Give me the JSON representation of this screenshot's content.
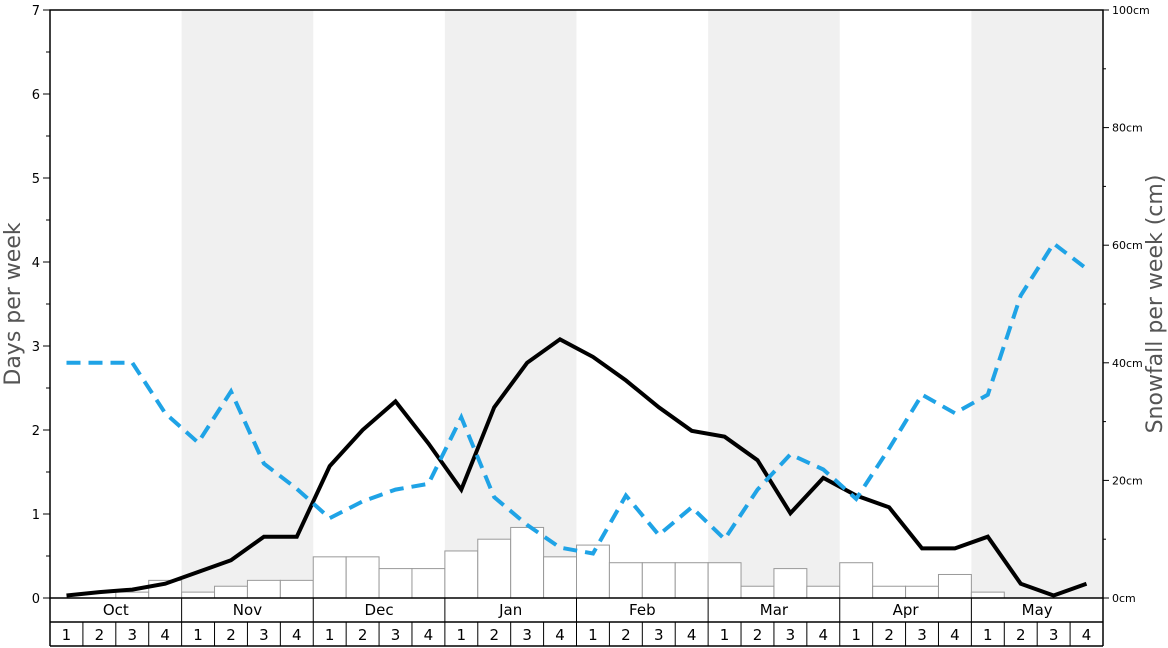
{
  "chart_data": {
    "type": "bar",
    "left_axis": {
      "label": "Days per week",
      "ylim": [
        0,
        7
      ],
      "ticks": [
        "0",
        "1",
        "2",
        "3",
        "4",
        "5",
        "6",
        "7"
      ]
    },
    "right_axis": {
      "label": "Snowfall per week (cm)",
      "ylim": [
        0,
        100
      ],
      "ticks": [
        "0cm",
        "20cm",
        "40cm",
        "60cm",
        "80cm",
        "100cm"
      ]
    },
    "months": [
      "Oct",
      "Nov",
      "Dec",
      "Jan",
      "Feb",
      "Mar",
      "Apr",
      "May"
    ],
    "weeks": [
      "1",
      "2",
      "3",
      "4"
    ],
    "shaded_months": [
      "Nov",
      "Jan",
      "Mar",
      "May"
    ],
    "series": [
      {
        "kind": "bar",
        "axis": "right",
        "values": [
          0,
          0,
          1,
          3,
          1,
          2,
          3,
          3,
          7,
          7,
          5,
          5,
          8,
          10,
          12,
          7,
          9,
          6,
          6,
          6,
          6,
          2,
          5,
          2,
          6,
          2,
          2,
          4,
          1,
          0,
          0,
          0
        ],
        "color": "#ffffff",
        "stroke": "#999999"
      },
      {
        "kind": "line",
        "axis": "left",
        "style": "solid",
        "color": "#000000",
        "values": [
          0.03,
          0.07,
          0.1,
          0.17,
          0.31,
          0.45,
          0.73,
          0.73,
          1.57,
          2.0,
          2.34,
          1.84,
          1.29,
          2.27,
          2.8,
          3.08,
          2.87,
          2.59,
          2.27,
          1.99,
          1.92,
          1.64,
          1.01,
          1.43,
          1.22,
          1.08,
          0.59,
          0.59,
          0.73,
          0.17,
          0.03,
          0.17
        ]
      },
      {
        "kind": "line",
        "axis": "left",
        "style": "dashed",
        "color": "#1fa3e6",
        "values": [
          2.8,
          2.8,
          2.8,
          2.2,
          1.85,
          2.46,
          1.6,
          1.3,
          0.95,
          1.15,
          1.29,
          1.36,
          2.15,
          1.2,
          0.87,
          0.6,
          0.53,
          1.22,
          0.75,
          1.08,
          0.7,
          1.29,
          1.71,
          1.53,
          1.18,
          1.78,
          2.42,
          2.2,
          2.42,
          3.6,
          4.22,
          3.92
        ]
      }
    ],
    "grid": false,
    "legend": "none"
  }
}
